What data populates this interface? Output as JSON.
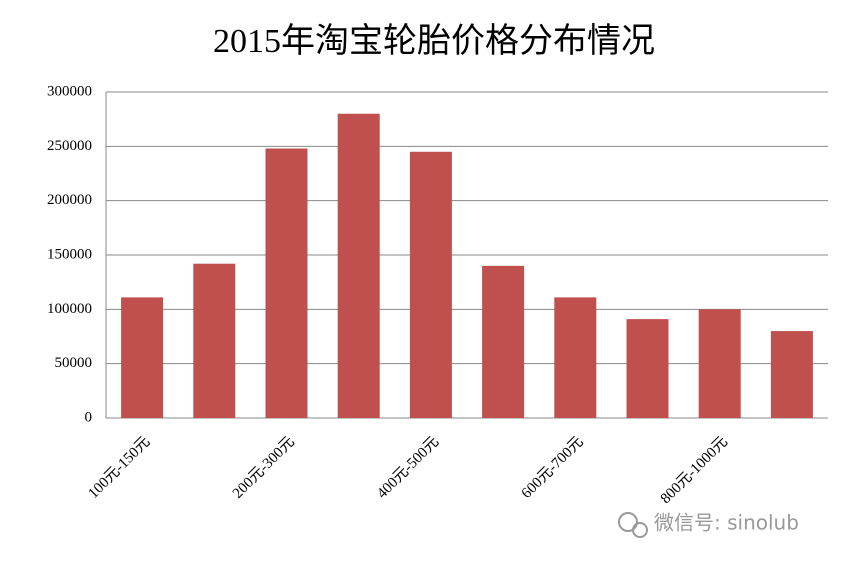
{
  "chart_data": {
    "type": "bar",
    "title": "2015年淘宝轮胎价格分布情况",
    "categories": [
      "100元-150元",
      null,
      "200元-300元",
      null,
      "400元-500元",
      null,
      "600元-700元",
      null,
      "800元-1000元",
      null
    ],
    "values": [
      111000,
      142000,
      248000,
      280000,
      245000,
      140000,
      111000,
      91000,
      100000,
      80000
    ],
    "color": "#c0504d",
    "ylim": [
      0,
      300000
    ],
    "yticks": [
      0,
      50000,
      100000,
      150000,
      200000,
      250000,
      300000
    ],
    "grid": true,
    "annotation": "微信号: sinolub"
  }
}
